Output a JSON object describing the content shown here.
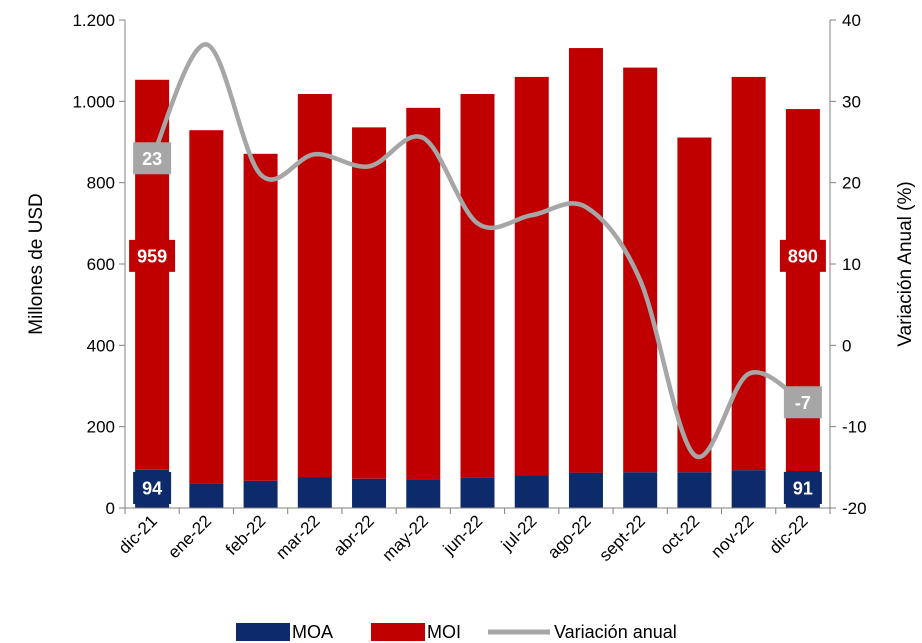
{
  "chart_data": {
    "type": "bar",
    "stacked": true,
    "categories": [
      "dic-21",
      "ene-22",
      "feb-22",
      "mar-22",
      "abr-22",
      "may-22",
      "jun-22",
      "jul-22",
      "ago-22",
      "sept-22",
      "oct-22",
      "nov-22",
      "dic-22"
    ],
    "series": [
      {
        "name": "MOA",
        "type": "bar",
        "axis": "left",
        "color": "#0d2a6b",
        "values": [
          94,
          60,
          67,
          75,
          72,
          71,
          74,
          80,
          87,
          88,
          88,
          93,
          91
        ]
      },
      {
        "name": "MOI",
        "type": "bar",
        "axis": "left",
        "color": "#c00000",
        "values": [
          959,
          869,
          804,
          943,
          864,
          913,
          944,
          980,
          1044,
          995,
          823,
          967,
          890
        ]
      },
      {
        "name": "Variación anual",
        "type": "line",
        "axis": "right",
        "color": "#a6a6a6",
        "values": [
          23,
          37,
          21,
          23.5,
          22,
          25.5,
          15,
          16,
          17,
          8,
          -13.5,
          -3.5,
          -7
        ]
      }
    ],
    "y_left": {
      "label": "Millones de USD",
      "ylim": [
        0,
        1200
      ],
      "ticks": [
        0,
        200,
        400,
        600,
        800,
        1000,
        1200
      ],
      "tick_labels": [
        "0",
        "200",
        "400",
        "600",
        "800",
        "1.000",
        "1.200"
      ]
    },
    "y_right": {
      "label": "Variación Anual (%)",
      "ylim": [
        -20,
        40
      ],
      "ticks": [
        -20,
        -10,
        0,
        10,
        20,
        30,
        40
      ],
      "tick_labels": [
        "-20",
        "-10",
        "0",
        "10",
        "20",
        "30",
        "40"
      ]
    },
    "data_labels": [
      {
        "text": "94",
        "series": "MOA",
        "index": 0,
        "color": "#0d2a6b"
      },
      {
        "text": "959",
        "series": "MOI",
        "index": 0,
        "color": "#c00000"
      },
      {
        "text": "23",
        "series": "Variación anual",
        "index": 0,
        "color": "#a6a6a6"
      },
      {
        "text": "91",
        "series": "MOA",
        "index": 12,
        "color": "#0d2a6b"
      },
      {
        "text": "890",
        "series": "MOI",
        "index": 12,
        "color": "#c00000"
      },
      {
        "text": "-7",
        "series": "Variación anual",
        "index": 12,
        "color": "#a6a6a6"
      }
    ],
    "legend": {
      "position": "bottom",
      "entries": [
        "MOA",
        "MOI",
        "Variación anual"
      ]
    },
    "grid": false
  }
}
